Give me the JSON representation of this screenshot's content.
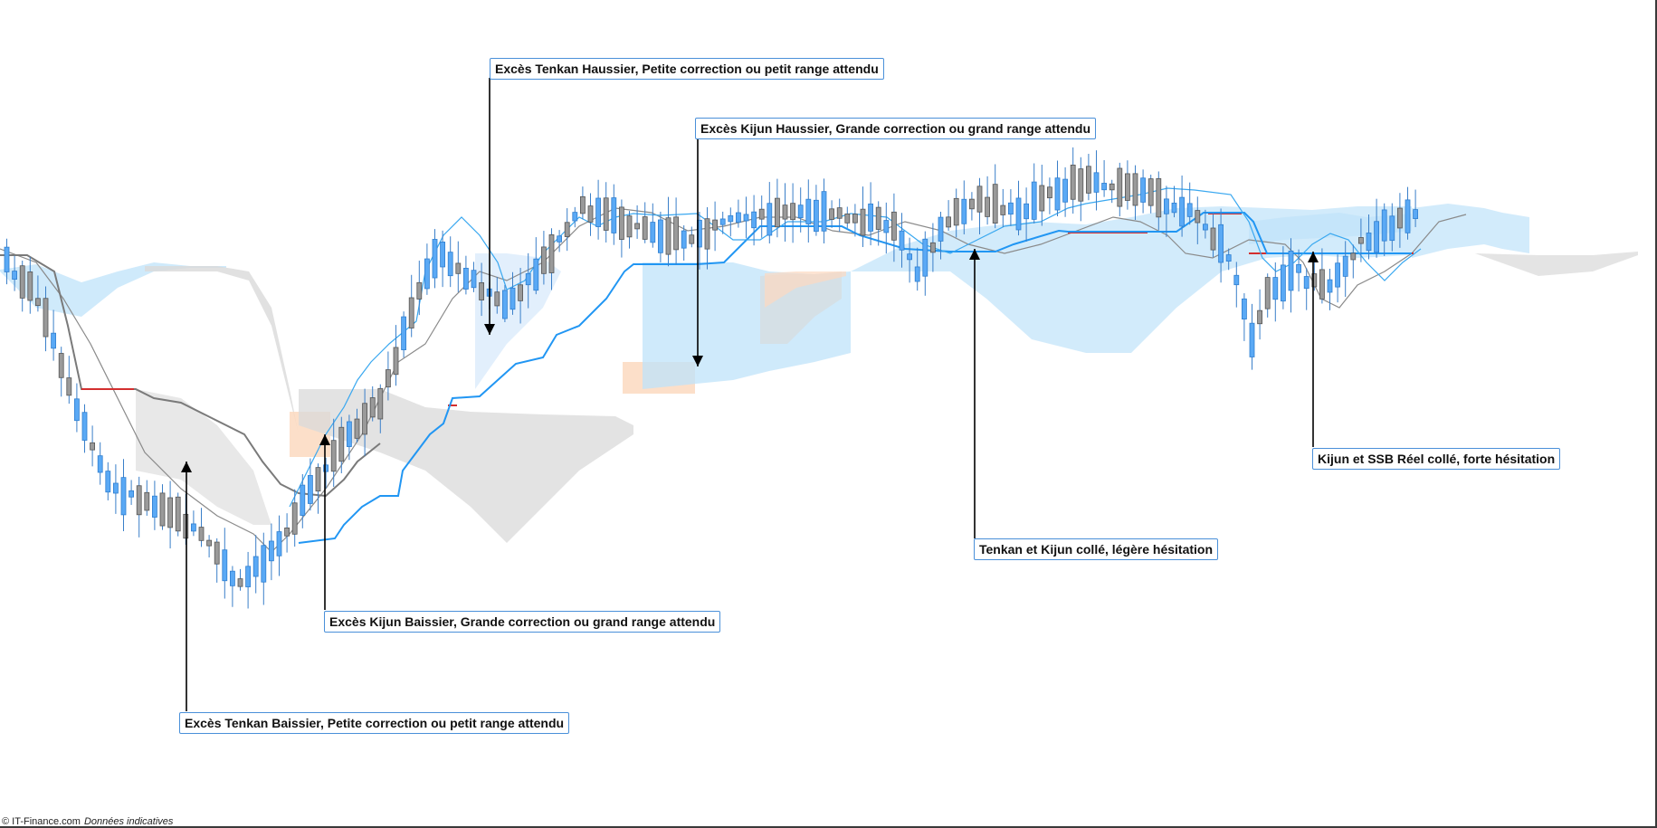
{
  "chart_data": {
    "type": "candlestick",
    "indicator": "ichimoku",
    "colors": {
      "bull_candle": "#5aa9f5",
      "bear_candle": "#9a9a9a",
      "wick": "#3a7fc9",
      "tenkan": "#3aa8f0",
      "kijun": "#2196f3",
      "chikou": "#8a8a8a",
      "ssb_flat": "#d32f2f",
      "kumo_bull": "#bfe3fa",
      "kumo_bear": "#d9d9d9",
      "kumo_orange": "#fcd9c0"
    },
    "annotations": [
      {
        "id": "tenkan-haussier",
        "text": "Excès Tenkan Haussier, Petite correction ou petit range attendu"
      },
      {
        "id": "kijun-haussier",
        "text": "Excès Kijun Haussier, Grande correction ou grand range attendu"
      },
      {
        "id": "kijun-baissier",
        "text": "Excès Kijun Baissier, Grande correction ou grand range attendu"
      },
      {
        "id": "tenkan-baissier",
        "text": "Excès Tenkan Baissier, Petite correction ou petit range attendu"
      },
      {
        "id": "tenkan-kijun-colle",
        "text": "Tenkan et Kijun collé, légère hésitation"
      },
      {
        "id": "kijun-ssb-colle",
        "text": "Kijun et SSB Réel collé, forte hésitation"
      }
    ]
  },
  "footer": {
    "source": "© IT-Finance.com",
    "disclaimer": "Données indicatives"
  }
}
